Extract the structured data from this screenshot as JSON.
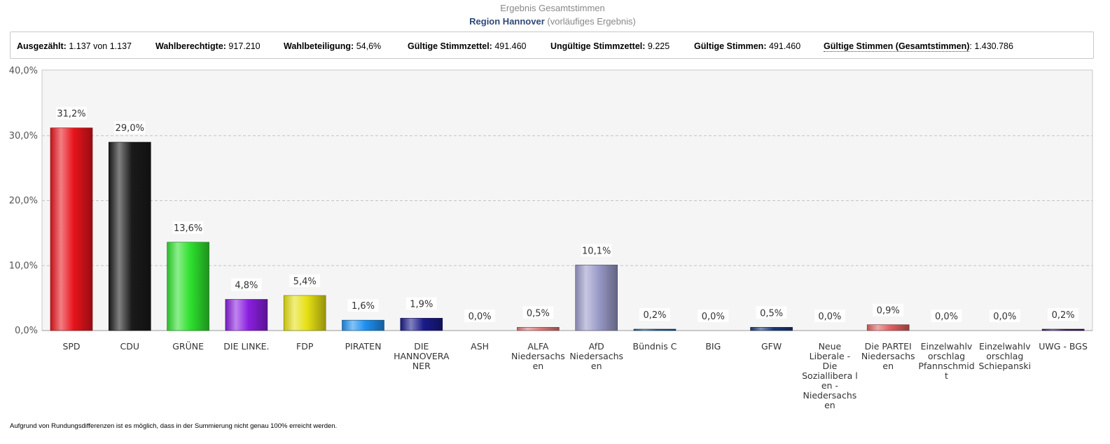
{
  "header": {
    "title": "Ergebnis Gesamtstimmen",
    "region": "Region Hannover",
    "status": "(vorläufiges Ergebnis)"
  },
  "stats": [
    {
      "label": "Ausgezählt:",
      "value": "1.137 von 1.137"
    },
    {
      "label": "Wahlberechtigte:",
      "value": "917.210"
    },
    {
      "label": "Wahlbeteiligung:",
      "value": " 54,6%"
    },
    {
      "label": "Gültige Stimmzettel:",
      "value": "491.460"
    },
    {
      "label": "Ungültige Stimmzettel:",
      "value": "9.225"
    },
    {
      "label": "Gültige Stimmen:",
      "value": "491.460"
    },
    {
      "label": "Gültige Stimmen (Gesamtstimmen)",
      "value": ": 1.430.786"
    }
  ],
  "footnote": "Aufgrund von Rundungsdifferenzen ist es möglich, dass in der Summierung nicht genau 100% erreicht werden.",
  "chart_data": {
    "type": "bar",
    "title": "",
    "xlabel": "",
    "ylabel": "",
    "ylim": [
      0,
      40
    ],
    "yticks": [
      "0,0%",
      "10,0%",
      "20,0%",
      "30,0%",
      "40,0%"
    ],
    "grid": true,
    "categories": [
      [
        "SPD"
      ],
      [
        "CDU"
      ],
      [
        "GRÜNE"
      ],
      [
        "DIE LINKE."
      ],
      [
        "FDP"
      ],
      [
        "PIRATEN"
      ],
      [
        "DIE",
        "HANNOVERA",
        "NER"
      ],
      [
        "ASH"
      ],
      [
        "ALFA",
        "Niedersachs",
        "en"
      ],
      [
        "AfD",
        "Niedersachs",
        "en"
      ],
      [
        "Bündnis C"
      ],
      [
        "BIG"
      ],
      [
        "GFW"
      ],
      [
        "Neue",
        "Liberale -",
        "Die",
        "Soziallibera l",
        "en -",
        "Niedersachs",
        "en"
      ],
      [
        "Die PARTEI",
        "Niedersachs",
        "en"
      ],
      [
        "Einzelwahlv",
        "orschlag",
        "Pfannschmid",
        "t"
      ],
      [
        "Einzelwahlv",
        "orschlag",
        "Schiepanski"
      ],
      [
        "UWG - BGS"
      ]
    ],
    "values": [
      31.2,
      29.0,
      13.6,
      4.8,
      5.4,
      1.6,
      1.9,
      0.0,
      0.5,
      10.1,
      0.2,
      0.0,
      0.5,
      0.0,
      0.9,
      0.0,
      0.0,
      0.2
    ],
    "value_labels": [
      "31,2%",
      "29,0%",
      "13,6%",
      "4,8%",
      "5,4%",
      "1,6%",
      "1,9%",
      "0,0%",
      "0,5%",
      "10,1%",
      "0,2%",
      "0,0%",
      "0,5%",
      "0,0%",
      "0,9%",
      "0,0%",
      "0,0%",
      "0,2%"
    ],
    "colors": [
      "#e8141c",
      "#1a1a1a",
      "#2ee02e",
      "#8a1fe0",
      "#e6e014",
      "#1e90f0",
      "#1a1a8a",
      "#cccccc",
      "#e07878",
      "#9a9ac8",
      "#1a5a9a",
      "#cccccc",
      "#1a3a7a",
      "#cccccc",
      "#e06060",
      "#cccccc",
      "#cccccc",
      "#3a1a6a"
    ]
  }
}
